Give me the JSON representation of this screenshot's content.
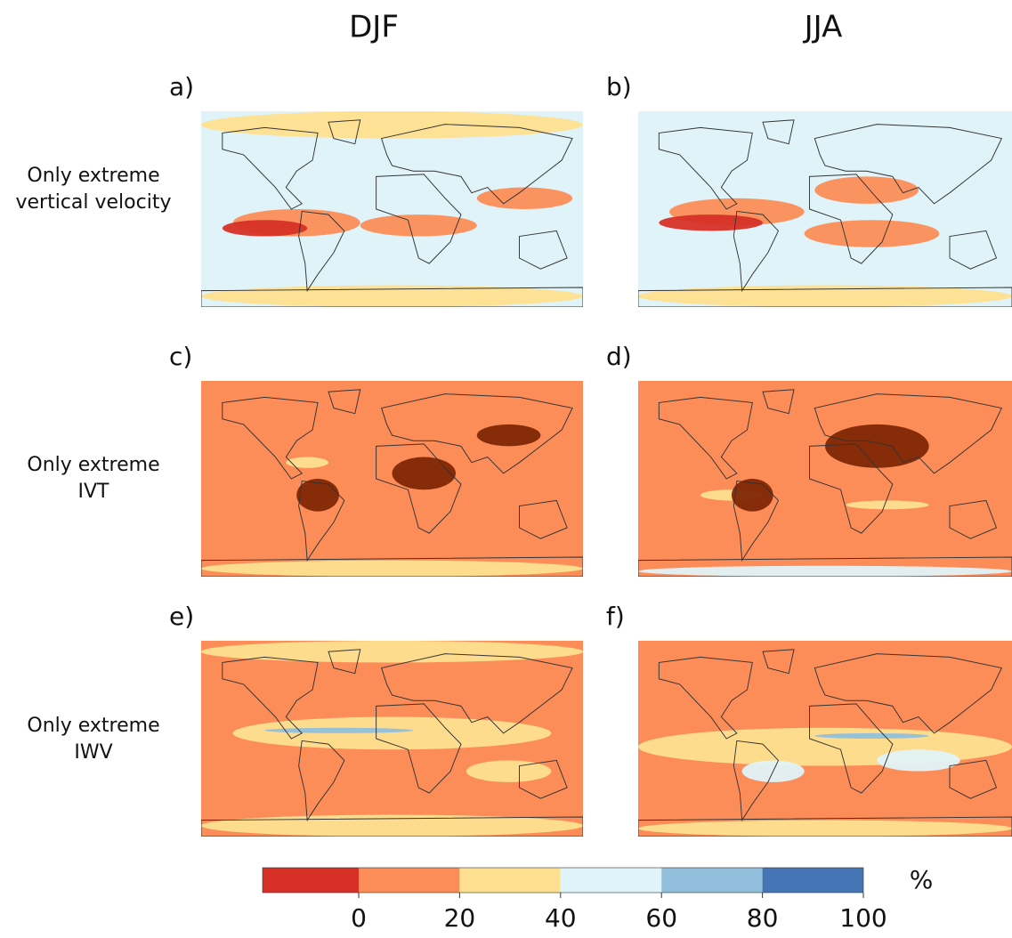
{
  "columns": [
    "DJF",
    "JJA"
  ],
  "panels": [
    "a)",
    "b)",
    "c)",
    "d)",
    "e)",
    "f)"
  ],
  "rows": [
    [
      "Only extreme",
      "vertical velocity"
    ],
    [
      "Only extreme",
      "IVT"
    ],
    [
      "Only extreme",
      "IWV"
    ]
  ],
  "colorbar": {
    "ticks": [
      0,
      20,
      40,
      60,
      80,
      100
    ],
    "under_color": "#d73027",
    "colors": [
      "#fc8d59",
      "#fee090",
      "#e0f3f8",
      "#91bfdb",
      "#4575b4"
    ],
    "unit": "%"
  }
}
